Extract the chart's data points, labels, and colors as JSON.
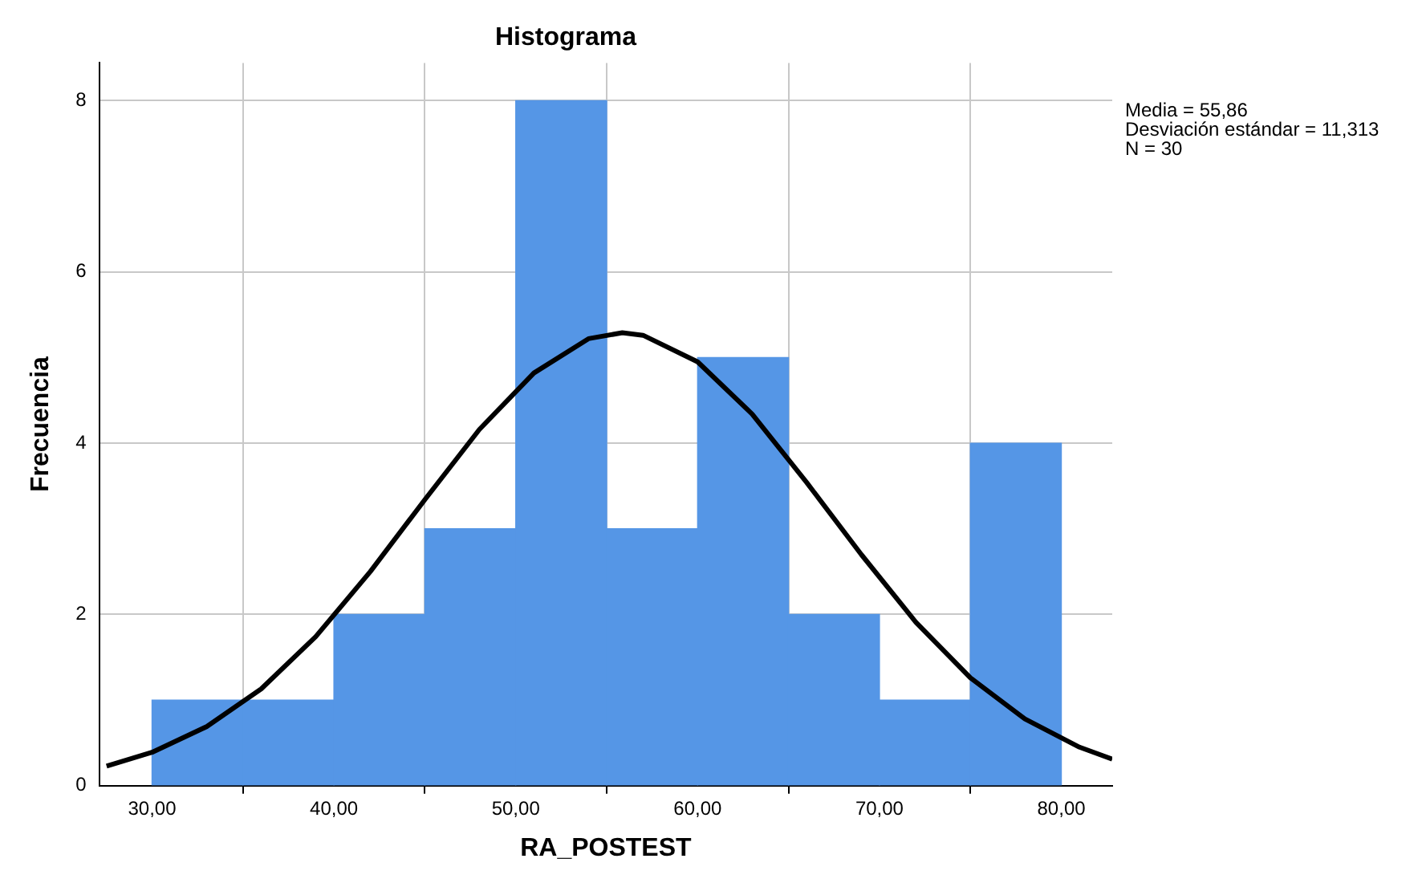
{
  "chart_data": {
    "type": "histogram",
    "title": "Histograma",
    "xlabel": "RA_POSTEST",
    "ylabel": "Frecuencia",
    "bins": [
      30,
      35,
      40,
      45,
      50,
      55,
      60,
      65,
      70,
      75,
      80
    ],
    "values": [
      1,
      1,
      2,
      3,
      8,
      3,
      5,
      2,
      1,
      4
    ],
    "color": "#5596e6",
    "series": [
      {
        "type": "line",
        "color": "#000000",
        "x": [
          27.5,
          30,
          33,
          36,
          39,
          42,
          45,
          48,
          51,
          54,
          55.86,
          57,
          60,
          63,
          66,
          69,
          72,
          75,
          78,
          81,
          82.8
        ],
        "values": [
          0.23,
          0.39,
          0.69,
          1.13,
          1.74,
          2.5,
          3.34,
          4.16,
          4.82,
          5.22,
          5.29,
          5.26,
          4.95,
          4.34,
          3.54,
          2.7,
          1.91,
          1.26,
          0.78,
          0.45,
          0.31
        ]
      }
    ],
    "xlim": [
      27.1,
      82.8
    ],
    "xticks": [
      {
        "value": 30,
        "label": "30,00"
      },
      {
        "value": 40,
        "label": "40,00"
      },
      {
        "value": 50,
        "label": "50,00"
      },
      {
        "value": 60,
        "label": "60,00"
      },
      {
        "value": 70,
        "label": "70,00"
      },
      {
        "value": 80,
        "label": "80,00"
      }
    ],
    "ylim": [
      0,
      8.44
    ],
    "yticks": [
      0,
      2,
      4,
      6,
      8
    ],
    "grid": true,
    "marker": "none",
    "annotations": [
      "Media = 55,86",
      "Desviación estándar = 11,313",
      "N = 30"
    ]
  }
}
